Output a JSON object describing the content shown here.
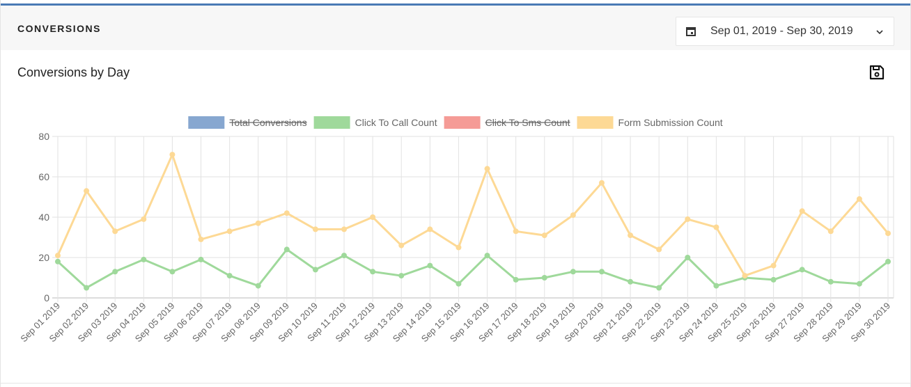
{
  "header": {
    "title": "CONVERSIONS",
    "date_range": "Sep 01, 2019 - Sep 30, 2019"
  },
  "card": {
    "title": "Conversions by Day"
  },
  "chart_data": {
    "type": "line",
    "categories": [
      "Sep 01 2019",
      "Sep 02 2019",
      "Sep 03 2019",
      "Sep 04 2019",
      "Sep 05 2019",
      "Sep 06 2019",
      "Sep 07 2019",
      "Sep 08 2019",
      "Sep 09 2019",
      "Sep 10 2019",
      "Sep 11 2019",
      "Sep 12 2019",
      "Sep 13 2019",
      "Sep 14 2019",
      "Sep 15 2019",
      "Sep 16 2019",
      "Sep 17 2019",
      "Sep 18 2019",
      "Sep 19 2019",
      "Sep 20 2019",
      "Sep 21 2019",
      "Sep 22 2019",
      "Sep 23 2019",
      "Sep 24 2019",
      "Sep 25 2019",
      "Sep 26 2019",
      "Sep 27 2019",
      "Sep 28 2019",
      "Sep 29 2019",
      "Sep 30 2019"
    ],
    "series": [
      {
        "name": "Total Conversions",
        "color": "#87a7d0",
        "hidden": true
      },
      {
        "name": "Click To Call Count",
        "color": "#9fd99b",
        "values": [
          18,
          5,
          13,
          19,
          13,
          19,
          11,
          6,
          24,
          14,
          21,
          13,
          11,
          16,
          7,
          21,
          9,
          10,
          13,
          13,
          8,
          5,
          20,
          6,
          10,
          9,
          14,
          8,
          7,
          18
        ]
      },
      {
        "name": "Click To Sms Count",
        "color": "#f59b96",
        "hidden": true
      },
      {
        "name": "Form Submission Count",
        "color": "#fdd995",
        "values": [
          21,
          53,
          33,
          39,
          71,
          29,
          33,
          37,
          42,
          34,
          34,
          40,
          26,
          34,
          25,
          64,
          33,
          31,
          41,
          57,
          31,
          24,
          39,
          35,
          11,
          16,
          43,
          33,
          49,
          32
        ]
      }
    ],
    "ylim": [
      0,
      80
    ],
    "yticks": [
      0,
      20,
      40,
      60,
      80
    ],
    "grid": true,
    "legend": "top"
  }
}
